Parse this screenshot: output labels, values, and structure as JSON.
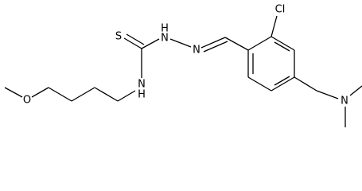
{
  "nodes": [
    {
      "label": "S"
    },
    {
      "label": "H"
    },
    {
      "label": "N"
    },
    {
      "label": "N"
    },
    {
      "label": "Cl"
    },
    {
      "label": "N"
    },
    {
      "label": "N"
    },
    {
      "label": "H"
    },
    {
      "label": "O"
    }
  ]
}
